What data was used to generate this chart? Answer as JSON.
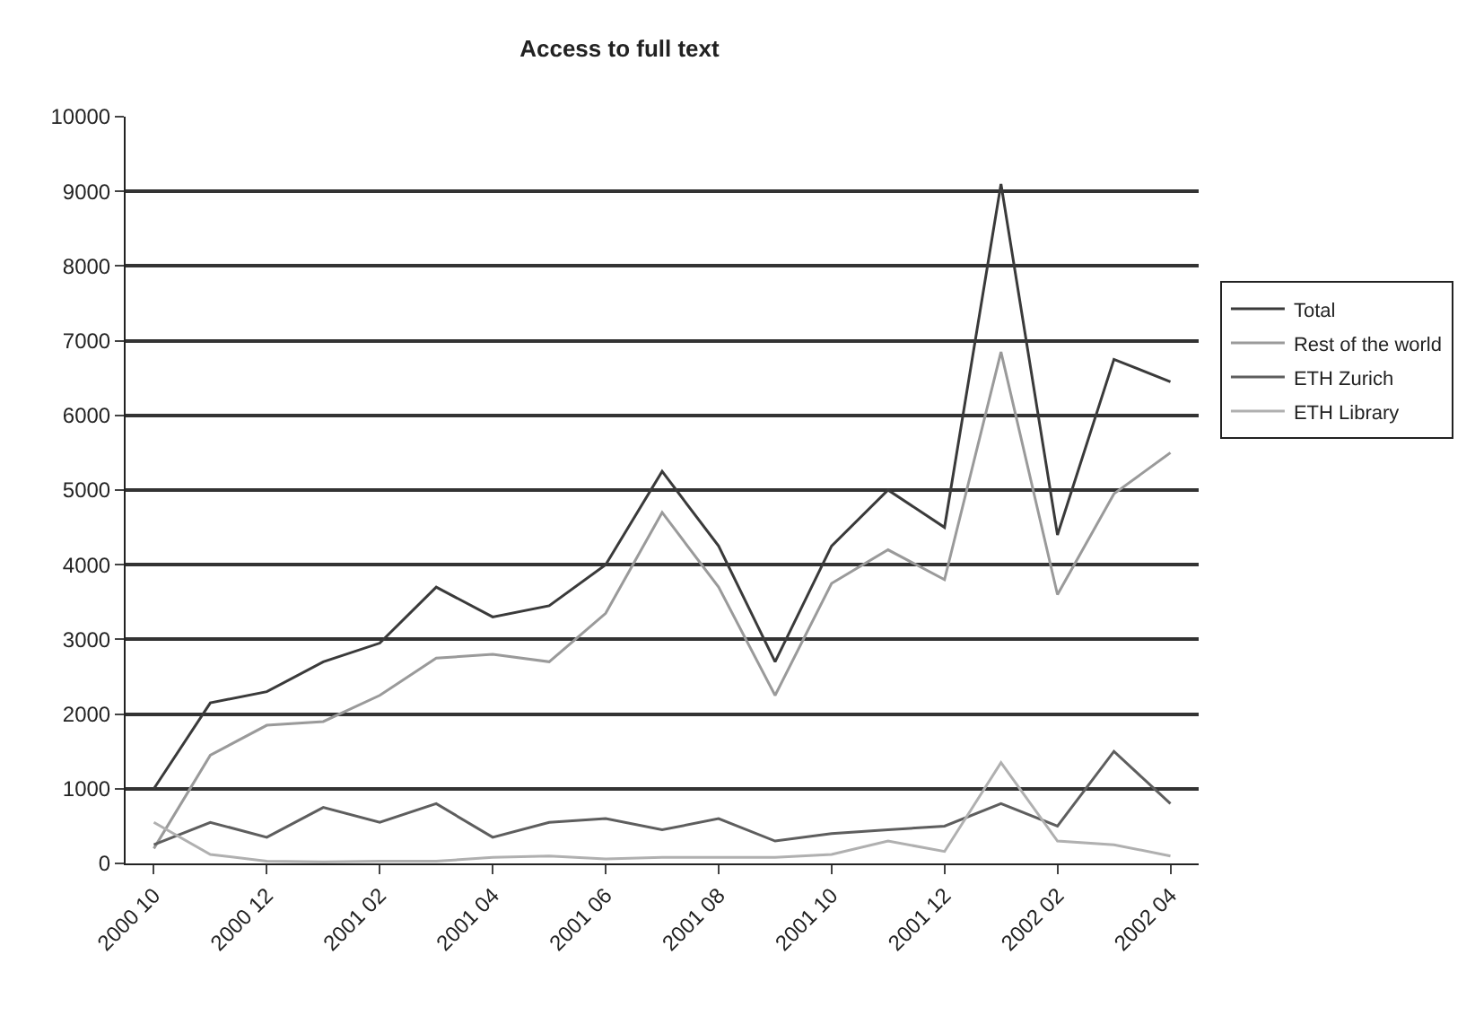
{
  "chart_data": {
    "type": "line",
    "title": "Access to full text",
    "categories": [
      "2000 10",
      null,
      "2000 12",
      null,
      "2001 02",
      null,
      "2001 04",
      null,
      "2001 06",
      null,
      "2001 08",
      null,
      "2001 10",
      null,
      "2001 12",
      null,
      "2002 02",
      null,
      "2002 04"
    ],
    "series": [
      {
        "name": "Total",
        "color": "#3a3a3a",
        "values": [
          1000,
          2150,
          2300,
          2700,
          2950,
          3700,
          3300,
          3450,
          4000,
          5250,
          4250,
          2700,
          4250,
          5000,
          4500,
          9100,
          4400,
          6750,
          6450
        ]
      },
      {
        "name": "Rest of the world",
        "color": "#9a9a9a",
        "values": [
          200,
          1450,
          1850,
          1900,
          2250,
          2750,
          2800,
          2700,
          3350,
          4700,
          3700,
          2250,
          3750,
          4200,
          3800,
          6850,
          3600,
          4950,
          5500
        ]
      },
      {
        "name": "ETH Zurich",
        "color": "#5e5e5e",
        "values": [
          250,
          550,
          350,
          750,
          550,
          800,
          350,
          550,
          600,
          450,
          600,
          300,
          400,
          450,
          500,
          800,
          500,
          1500,
          800
        ]
      },
      {
        "name": "ETH Library",
        "color": "#b0b0b0",
        "values": [
          550,
          120,
          30,
          20,
          30,
          30,
          80,
          100,
          60,
          80,
          80,
          80,
          120,
          300,
          160,
          1350,
          300,
          250,
          100
        ]
      }
    ],
    "ylim": [
      0,
      10000
    ],
    "yticks": [
      0,
      1000,
      2000,
      3000,
      4000,
      5000,
      6000,
      7000,
      8000,
      9000,
      10000
    ],
    "grid": "y",
    "legend": "right",
    "marker": "none",
    "line_style": "solid"
  }
}
